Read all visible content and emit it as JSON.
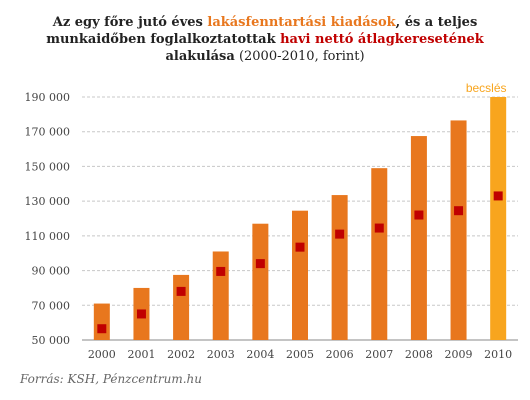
{
  "title": {
    "part1": "Az egy főre jutó éves ",
    "part2": "lakásfenntartási kiadások",
    "part3": ", és a teljes",
    "part4": "munkaidőben foglalkoztatottak ",
    "part5": "havi nettó átlagkeresetének",
    "part6": "alakulása",
    "part7": " (2000-2010, forint)"
  },
  "source": "Forrás: KSH, Pénzcentrum.hu",
  "colors": {
    "bar": "#E8771E",
    "bar_estimate": "#F8A51E",
    "marker": "#C00000",
    "title_orange": "#E8771E",
    "title_red": "#C00000",
    "grid": "#c8c8c8",
    "estimate_label": "#F8A51E"
  },
  "chart_data": {
    "type": "bar",
    "categories": [
      "2000",
      "2001",
      "2002",
      "2003",
      "2004",
      "2005",
      "2006",
      "2007",
      "2008",
      "2009",
      "2010"
    ],
    "series": [
      {
        "name": "lakásfenntartási kiadások",
        "kind": "bar",
        "values": [
          71000,
          80000,
          87500,
          101000,
          117000,
          124500,
          133500,
          149000,
          167500,
          176500,
          190000
        ]
      },
      {
        "name": "havi nettó átlagkereset",
        "kind": "marker",
        "values": [
          56500,
          65000,
          78000,
          89500,
          94000,
          103500,
          111000,
          114500,
          122000,
          124500,
          133000
        ]
      }
    ],
    "estimate_index": 10,
    "estimate_label": "becslés",
    "ylim": [
      50000,
      190000
    ],
    "yticks": [
      50000,
      70000,
      90000,
      110000,
      130000,
      150000,
      170000,
      190000
    ],
    "ytick_labels": [
      "50 000",
      "70 000",
      "90 000",
      "110 000",
      "130 000",
      "150 000",
      "170 000",
      "190 000"
    ],
    "grid": true
  }
}
